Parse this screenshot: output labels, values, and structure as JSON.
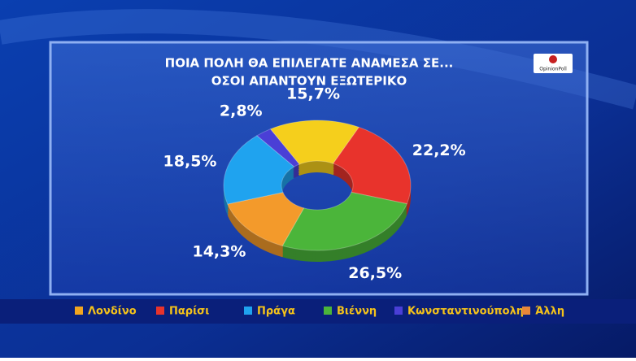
{
  "chart_data": {
    "type": "donut",
    "title": "ΠΟΙΑ ΠΟΛΗ ΘΑ ΕΠΙΛΕΓΑΤΕ ΑΝΑΜΕΣΑ ΣΕ...",
    "subtitle": "ΟΣΟΙ ΑΠΑΝΤΟΥΝ ΕΞΩΤΕΡΙΚΟ",
    "logo": "OpinionPoll",
    "categories": [
      "Λονδίνο",
      "Παρίσι",
      "Βιέννη",
      "Άλλη",
      "Πράγα",
      "Κωνσταντινούπολη"
    ],
    "values": [
      15.7,
      22.2,
      26.5,
      14.3,
      18.5,
      2.8
    ],
    "value_labels": [
      "15,7%",
      "22,2%",
      "26,5%",
      "14,3%",
      "18,5%",
      "2,8%"
    ],
    "colors": [
      "#f5cf1c",
      "#e8332c",
      "#4bb53a",
      "#f39a2b",
      "#1fa3ef",
      "#4a3fd6"
    ],
    "legend_colors": [
      "#f2a51f",
      "#e8332c",
      "#4bb53a",
      "#e8873a",
      "#1fa3ef",
      "#4a3fd6"
    ]
  }
}
